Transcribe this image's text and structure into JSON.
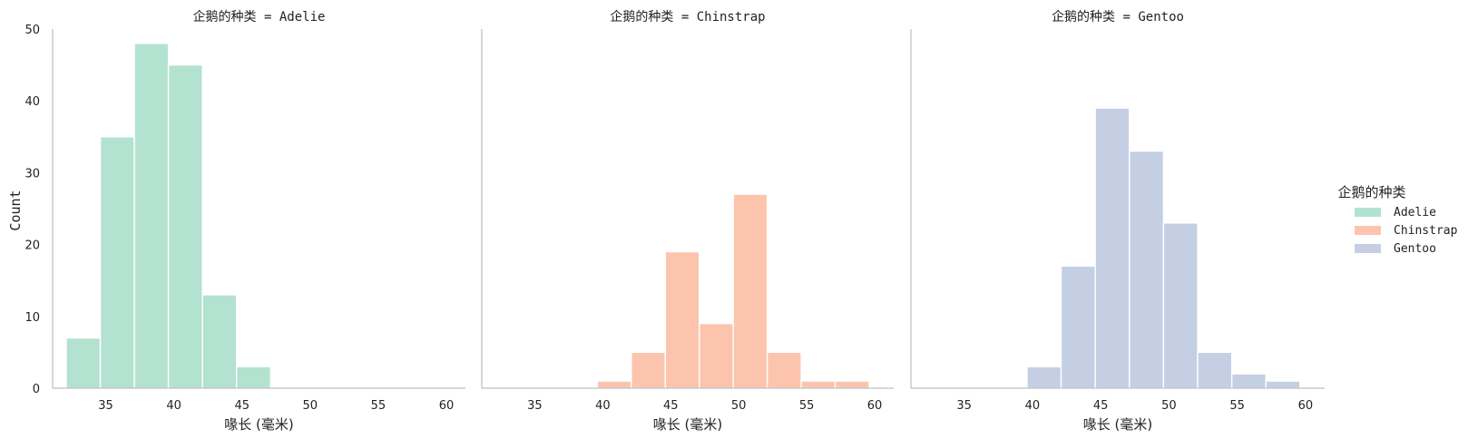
{
  "chart_data": {
    "type": "bar",
    "facet_label": "企鹅的种类",
    "xlabel": "喙长 (毫米)",
    "ylabel": "Count",
    "xlim": [
      31.1,
      61.4
    ],
    "ylim": [
      0,
      50
    ],
    "xticks": [
      35,
      40,
      45,
      50,
      55,
      60
    ],
    "yticks": [
      0,
      10,
      20,
      30,
      40,
      50
    ],
    "bin_edges": [
      32.1,
      34.6,
      37.1,
      39.6,
      42.1,
      44.6,
      47.1,
      49.6,
      52.1,
      54.6,
      57.1,
      59.6
    ],
    "legend": {
      "title": "企鹅的种类",
      "placement": "right"
    },
    "panels": [
      {
        "title": "企鹅的种类 = Adelie",
        "series": "Adelie",
        "color": "#b3e2d1",
        "values": [
          7,
          35,
          48,
          45,
          13,
          3,
          0,
          0,
          0,
          0,
          0
        ]
      },
      {
        "title": "企鹅的种类 = Chinstrap",
        "series": "Chinstrap",
        "color": "#fcc4ad",
        "values": [
          0,
          0,
          0,
          1,
          5,
          19,
          9,
          27,
          5,
          1,
          1
        ]
      },
      {
        "title": "企鹅的种类 = Gentoo",
        "series": "Gentoo",
        "color": "#c4cfe4",
        "values": [
          0,
          0,
          0,
          3,
          17,
          39,
          33,
          23,
          5,
          2,
          1
        ]
      }
    ],
    "series": [
      {
        "name": "Adelie",
        "color": "#b3e2d1"
      },
      {
        "name": "Chinstrap",
        "color": "#fcc4ad"
      },
      {
        "name": "Gentoo",
        "color": "#c4cfe4"
      }
    ]
  }
}
